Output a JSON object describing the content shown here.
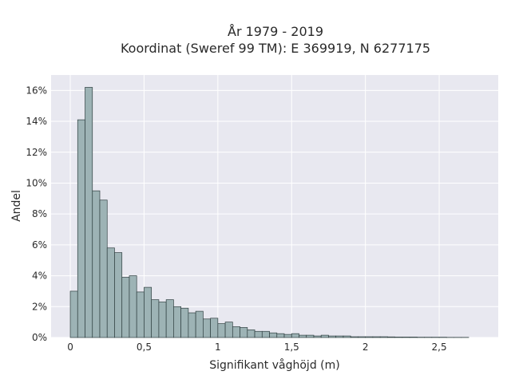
{
  "chart_data": {
    "type": "bar",
    "title": "År 1979 - 2019",
    "subtitle": "Koordinat (Sweref 99 TM): E 369919, N 6277175",
    "xlabel": "Signifikant våghöjd (m)",
    "ylabel": "Andel",
    "xlim": [
      -0.13,
      2.9
    ],
    "ylim": [
      0,
      17
    ],
    "xticks": [
      0,
      0.5,
      1,
      1.5,
      2,
      2.5
    ],
    "xtick_labels": [
      "0",
      "0,5",
      "1",
      "1,5",
      "2",
      "2,5"
    ],
    "yticks": [
      0,
      2,
      4,
      6,
      8,
      10,
      12,
      14,
      16
    ],
    "ytick_labels": [
      "0%",
      "2%",
      "4%",
      "6%",
      "8%",
      "10%",
      "12%",
      "14%",
      "16%"
    ],
    "bin_start": 0,
    "bin_width": 0.05,
    "values": [
      3.0,
      14.1,
      16.2,
      9.5,
      8.9,
      5.8,
      5.5,
      3.9,
      4.0,
      2.95,
      3.25,
      2.45,
      2.3,
      2.45,
      2.0,
      1.9,
      1.6,
      1.7,
      1.2,
      1.25,
      0.9,
      1.0,
      0.7,
      0.65,
      0.5,
      0.4,
      0.4,
      0.3,
      0.25,
      0.2,
      0.25,
      0.15,
      0.15,
      0.1,
      0.15,
      0.1,
      0.1,
      0.1,
      0.05,
      0.05,
      0.05,
      0.05,
      0.05,
      0.04,
      0.03,
      0.03,
      0.03,
      0.02,
      0.02,
      0.02,
      0.02,
      0.01,
      0.01,
      0.01
    ],
    "grid": true,
    "colors": {
      "bar": "#9db3b5",
      "edge": "#2f3f40",
      "background": "#e8e8f0",
      "grid": "#ffffff"
    }
  }
}
